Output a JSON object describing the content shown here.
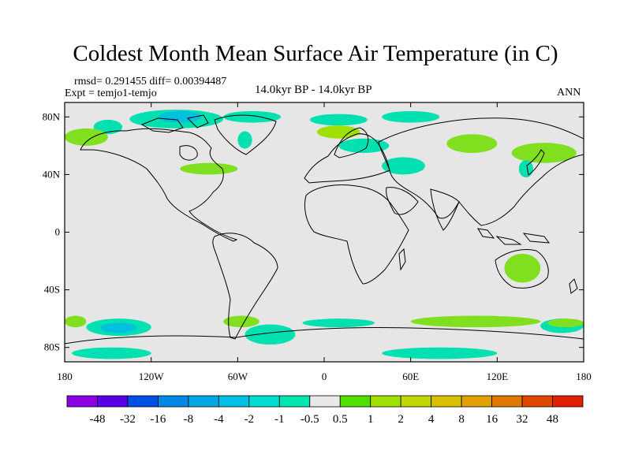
{
  "title": "Coldest Month Mean Surface Air Temperature (in C)",
  "stats": "rmsd= 0.291455 diff= 0.00394487",
  "experiment": "Expt = temjo1-temjo",
  "period": "14.0kyr BP - 14.0kyr BP",
  "season": "ANN",
  "map": {
    "lon_range": [
      -180,
      180
    ],
    "lat_range": [
      -90,
      90
    ],
    "background_color": "#e6e6e6",
    "lat_ticks": [
      {
        "value": 80,
        "label": "80N"
      },
      {
        "value": 40,
        "label": "40N"
      },
      {
        "value": 0,
        "label": "0"
      },
      {
        "value": -40,
        "label": "40S"
      },
      {
        "value": -80,
        "label": "80S"
      }
    ],
    "lon_ticks": [
      {
        "value": -180,
        "label": "180"
      },
      {
        "value": -120,
        "label": "120W"
      },
      {
        "value": -60,
        "label": "60W"
      },
      {
        "value": 0,
        "label": "0"
      },
      {
        "value": 60,
        "label": "60E"
      },
      {
        "value": 120,
        "label": "120E"
      },
      {
        "value": 180,
        "label": "180"
      }
    ],
    "anomaly_regions": [
      {
        "color": "#00e0b0",
        "lon": [
          -160,
          -140
        ],
        "lat": [
          68,
          78
        ]
      },
      {
        "color": "#00e0b0",
        "lon": [
          -135,
          -70
        ],
        "lat": [
          72,
          85
        ]
      },
      {
        "color": "#00c0e0",
        "lon": [
          -115,
          -85
        ],
        "lat": [
          76,
          84
        ]
      },
      {
        "color": "#00e0b0",
        "lon": [
          -70,
          -30
        ],
        "lat": [
          76,
          84
        ]
      },
      {
        "color": "#00e0b0",
        "lon": [
          -60,
          -50
        ],
        "lat": [
          58,
          70
        ]
      },
      {
        "color": "#80e020",
        "lon": [
          -100,
          -60
        ],
        "lat": [
          40,
          48
        ]
      },
      {
        "color": "#00e0b0",
        "lon": [
          -10,
          30
        ],
        "lat": [
          74,
          82
        ]
      },
      {
        "color": "#a0e000",
        "lon": [
          -5,
          25
        ],
        "lat": [
          65,
          74
        ]
      },
      {
        "color": "#00e0b0",
        "lon": [
          40,
          80
        ],
        "lat": [
          76,
          84
        ]
      },
      {
        "color": "#00e0b0",
        "lon": [
          10,
          45
        ],
        "lat": [
          55,
          65
        ]
      },
      {
        "color": "#00e0b0",
        "lon": [
          40,
          70
        ],
        "lat": [
          40,
          52
        ]
      },
      {
        "color": "#80e020",
        "lon": [
          85,
          120
        ],
        "lat": [
          55,
          68
        ]
      },
      {
        "color": "#80e020",
        "lon": [
          130,
          175
        ],
        "lat": [
          48,
          62
        ]
      },
      {
        "color": "#00e0b0",
        "lon": [
          135,
          145
        ],
        "lat": [
          38,
          50
        ]
      },
      {
        "color": "#80e020",
        "lon": [
          -180,
          -150
        ],
        "lat": [
          60,
          72
        ]
      },
      {
        "color": "#80e020",
        "lon": [
          125,
          150
        ],
        "lat": [
          -35,
          -15
        ]
      },
      {
        "color": "#80e020",
        "lon": [
          -180,
          -165
        ],
        "lat": [
          -66,
          -58
        ]
      },
      {
        "color": "#00e0b0",
        "lon": [
          -165,
          -120
        ],
        "lat": [
          -72,
          -60
        ]
      },
      {
        "color": "#00c0e0",
        "lon": [
          -155,
          -130
        ],
        "lat": [
          -70,
          -63
        ]
      },
      {
        "color": "#80e020",
        "lon": [
          -70,
          -45
        ],
        "lat": [
          -66,
          -58
        ]
      },
      {
        "color": "#00e0b0",
        "lon": [
          -55,
          -20
        ],
        "lat": [
          -78,
          -64
        ]
      },
      {
        "color": "#00e0b0",
        "lon": [
          -15,
          35
        ],
        "lat": [
          -66,
          -60
        ]
      },
      {
        "color": "#80e020",
        "lon": [
          60,
          150
        ],
        "lat": [
          -66,
          -58
        ]
      },
      {
        "color": "#00e0b0",
        "lon": [
          150,
          180
        ],
        "lat": [
          -70,
          -60
        ]
      },
      {
        "color": "#80e020",
        "lon": [
          155,
          180
        ],
        "lat": [
          -66,
          -60
        ]
      },
      {
        "color": "#00e0b0",
        "lon": [
          -175,
          -120
        ],
        "lat": [
          -88,
          -80
        ]
      },
      {
        "color": "#00e0b0",
        "lon": [
          40,
          120
        ],
        "lat": [
          -88,
          -80
        ]
      }
    ]
  },
  "colorbar": {
    "colors": [
      "#8c00e6",
      "#5a00e6",
      "#0050e6",
      "#0088e6",
      "#00a6e6",
      "#00c0e6",
      "#00dcd0",
      "#00e6b0",
      "#e8e8e8",
      "#50e000",
      "#a0e000",
      "#c0d800",
      "#d8c000",
      "#e0a000",
      "#e07800",
      "#e04800",
      "#e02000"
    ],
    "labels": [
      "-48",
      "-32",
      "-16",
      "-8",
      "-4",
      "-2",
      "-1",
      "-0.5",
      "0.5",
      "1",
      "2",
      "4",
      "8",
      "16",
      "32",
      "48"
    ]
  }
}
